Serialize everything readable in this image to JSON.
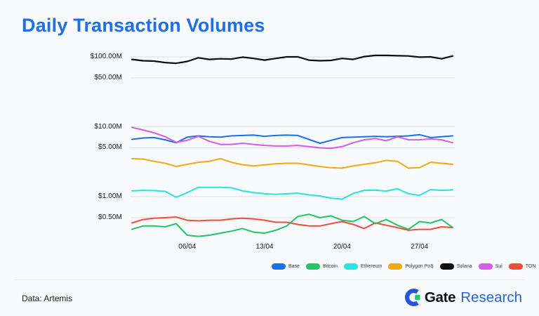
{
  "title": "Daily Transaction Volumes",
  "source": "Data: Artemis",
  "brand": {
    "gate": "Gate",
    "research": "Research"
  },
  "colors": {
    "title": "#1B6EF3",
    "research_text": "#2563EB",
    "logo_blue": "#2354E6",
    "logo_green": "#16D06E",
    "grid": "#E2E4E8",
    "axis_text": "#15181D",
    "background": "#F8FAFB"
  },
  "chart_data": {
    "type": "line",
    "title": "Daily Transaction Volumes",
    "y_scale": "log",
    "unit": "USD millions per day",
    "grid": true,
    "legend_position": "bottom-right",
    "n_points": 30,
    "x_ticks": [
      {
        "label": "06/04",
        "index": 5
      },
      {
        "label": "13/04",
        "index": 12
      },
      {
        "label": "20/04",
        "index": 19
      },
      {
        "label": "27/04",
        "index": 26
      }
    ],
    "y_ticks": [
      {
        "label": "$100.00M",
        "value": 100
      },
      {
        "label": "$50.00M",
        "value": 50
      },
      {
        "label": "$10.00M",
        "value": 10
      },
      {
        "label": "$5.00M",
        "value": 5
      },
      {
        "label": "$1.00M",
        "value": 1
      },
      {
        "label": "$0.50M",
        "value": 0.5
      }
    ],
    "series": [
      {
        "name": "Base",
        "color": "#1A6FEB",
        "values": [
          6.6,
          6.9,
          7.0,
          6.5,
          5.9,
          7.1,
          7.4,
          7.2,
          7.1,
          7.4,
          7.5,
          7.6,
          7.3,
          7.5,
          7.6,
          7.5,
          6.6,
          5.8,
          6.4,
          7.0,
          7.1,
          7.2,
          7.3,
          7.2,
          7.3,
          7.4,
          7.7,
          7.0,
          7.2,
          7.4
        ]
      },
      {
        "name": "Bitcoin",
        "color": "#1FC764",
        "values": [
          0.34,
          0.38,
          0.38,
          0.37,
          0.41,
          0.28,
          0.27,
          0.28,
          0.3,
          0.32,
          0.35,
          0.31,
          0.3,
          0.33,
          0.38,
          0.52,
          0.56,
          0.5,
          0.53,
          0.46,
          0.44,
          0.52,
          0.41,
          0.47,
          0.39,
          0.34,
          0.44,
          0.42,
          0.47,
          0.36
        ]
      },
      {
        "name": "Ethereum",
        "color": "#26E5DC",
        "values": [
          1.21,
          1.23,
          1.22,
          1.19,
          0.98,
          1.14,
          1.36,
          1.36,
          1.36,
          1.34,
          1.21,
          1.14,
          1.1,
          1.08,
          1.1,
          1.12,
          1.06,
          1.02,
          0.95,
          0.92,
          1.11,
          1.23,
          1.24,
          1.2,
          1.3,
          1.1,
          1.04,
          1.26,
          1.23,
          1.25
        ]
      },
      {
        "name": "Polygon PoS",
        "color": "#F2A90E",
        "values": [
          3.5,
          3.45,
          3.2,
          3.0,
          2.7,
          2.9,
          3.1,
          3.2,
          3.5,
          3.1,
          2.85,
          2.75,
          2.85,
          2.95,
          3.0,
          3.0,
          2.85,
          2.7,
          2.6,
          2.55,
          2.75,
          2.9,
          3.05,
          3.3,
          3.2,
          2.55,
          2.6,
          3.1,
          3.0,
          2.9
        ]
      },
      {
        "name": "Solana",
        "color": "#0E0E0E",
        "values": [
          92,
          88,
          87,
          83,
          81,
          86,
          97,
          92,
          94,
          93,
          99,
          95,
          90,
          95,
          100,
          100,
          90,
          88,
          89,
          95,
          92,
          101,
          105,
          105,
          104,
          103,
          99,
          100,
          94,
          103
        ]
      },
      {
        "name": "Sui",
        "color": "#D55CE8",
        "values": [
          9.8,
          9.0,
          8.2,
          7.2,
          6.0,
          6.4,
          7.3,
          6.2,
          5.6,
          5.6,
          5.8,
          5.6,
          5.4,
          5.3,
          5.3,
          5.4,
          5.2,
          5.0,
          4.9,
          5.2,
          5.9,
          6.5,
          6.8,
          6.3,
          7.2,
          6.5,
          6.5,
          6.7,
          6.5,
          5.9
        ]
      },
      {
        "name": "TON",
        "color": "#F24B3A",
        "values": [
          0.42,
          0.47,
          0.49,
          0.5,
          0.51,
          0.46,
          0.45,
          0.46,
          0.46,
          0.48,
          0.49,
          0.48,
          0.46,
          0.43,
          0.43,
          0.4,
          0.38,
          0.38,
          0.41,
          0.44,
          0.4,
          0.35,
          0.42,
          0.39,
          0.36,
          0.33,
          0.34,
          0.34,
          0.37,
          0.36
        ]
      }
    ],
    "draw_order": [
      "Polygon PoS",
      "Base",
      "Sui",
      "Ethereum",
      "Solana",
      "TON",
      "Bitcoin"
    ]
  }
}
